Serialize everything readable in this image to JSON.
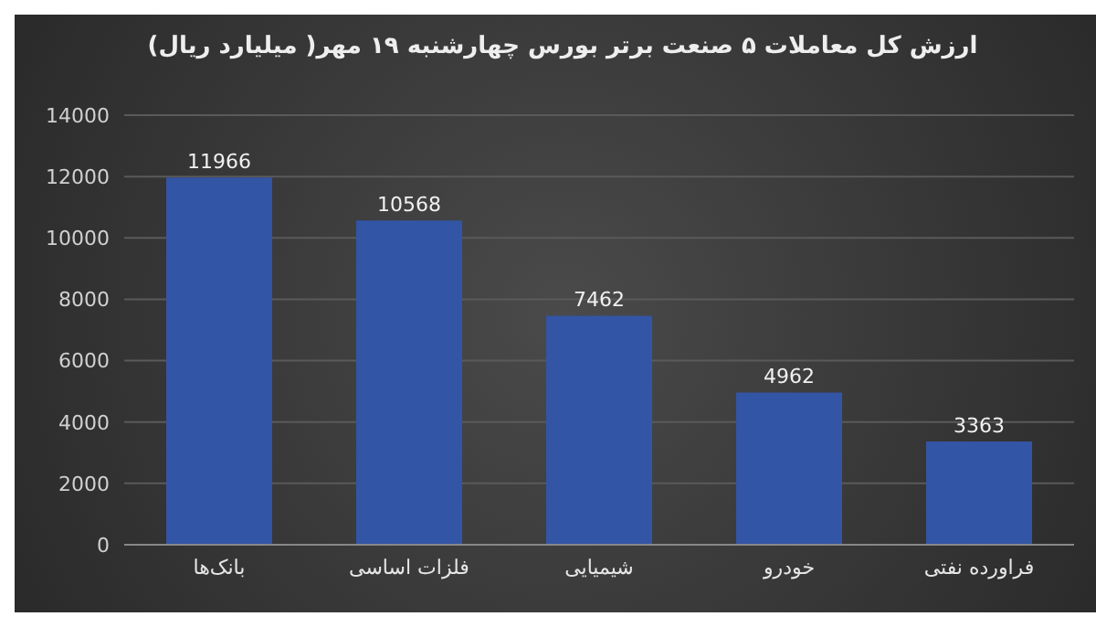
{
  "chart_data": {
    "type": "bar",
    "title": "ارزش کل معاملات ۵ صنعت برتر بورس چهارشنبه ۱۹ مهر( میلیارد ریال)",
    "categories": [
      "بانک‌ها",
      "فلزات اساسی",
      "شیمیایی",
      "خودرو",
      "فراورده نفتی"
    ],
    "values": [
      11966,
      10568,
      7462,
      4962,
      3363
    ],
    "color": "#3355a5",
    "ylim": [
      0,
      14000
    ],
    "yticks": [
      0,
      2000,
      4000,
      6000,
      8000,
      10000,
      12000,
      14000
    ],
    "grid": "y",
    "data_labels": true
  }
}
